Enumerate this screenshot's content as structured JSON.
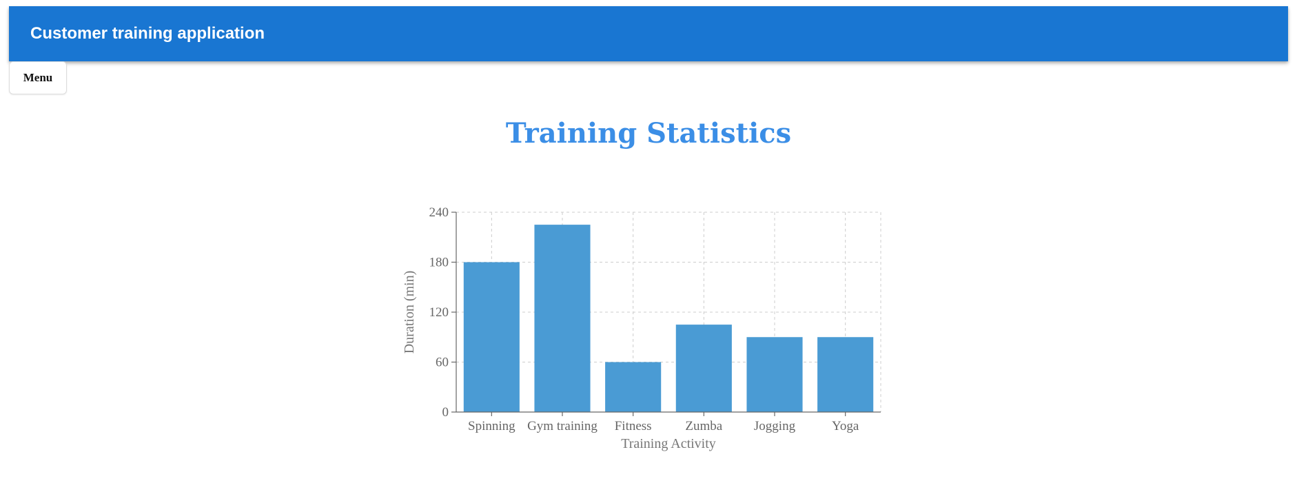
{
  "appbar": {
    "title": "Customer training application"
  },
  "menu": {
    "label": "Menu"
  },
  "page": {
    "title": "Training Statistics"
  },
  "colors": {
    "appbar": "#1976d2",
    "title": "#3b8ee6",
    "bar": "#4a9bd4"
  },
  "chart_data": {
    "type": "bar",
    "categories": [
      "Spinning",
      "Gym training",
      "Fitness",
      "Zumba",
      "Jogging",
      "Yoga"
    ],
    "values": [
      180,
      225,
      60,
      105,
      90,
      90
    ],
    "title": "",
    "xlabel": "Training Activity",
    "ylabel": "Duration (min)",
    "ylim": [
      0,
      240
    ],
    "yticks": [
      0,
      60,
      120,
      180,
      240
    ],
    "grid": true
  }
}
